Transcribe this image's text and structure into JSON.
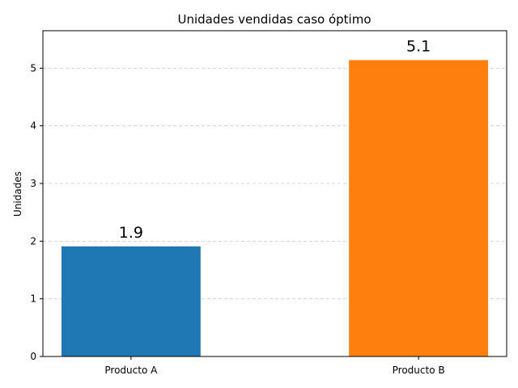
{
  "chart_data": {
    "type": "bar",
    "title": "Unidades vendidas caso óptimo",
    "xlabel": "",
    "ylabel": "Unidades",
    "categories": [
      "Producto A",
      "Producto B"
    ],
    "values": [
      1.91,
      5.14
    ],
    "data_labels": [
      "1.9",
      "5.1"
    ],
    "colors": [
      "#1f77b4",
      "#ff7f0e"
    ],
    "ylim": [
      0,
      5.65
    ],
    "yticks": [
      0,
      1,
      2,
      3,
      4,
      5
    ],
    "grid": true
  }
}
